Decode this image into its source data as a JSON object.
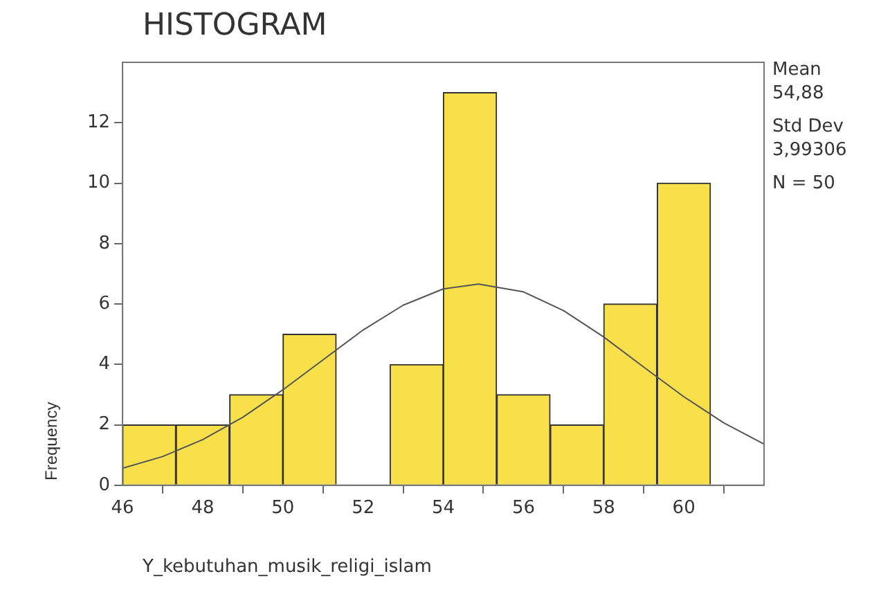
{
  "chart_data": {
    "type": "histogram",
    "title": "HISTOGRAM",
    "xlabel": "Y_kebutuhan_musik_religi_islam",
    "ylabel": "Frequency",
    "bins": [
      46,
      47.33,
      48.67,
      50,
      51.33,
      52.67,
      54,
      55.33,
      56.67,
      58,
      59.33,
      60.67
    ],
    "values": [
      2,
      2,
      3,
      5,
      0,
      4,
      13,
      3,
      2,
      6,
      10
    ],
    "color": "#f7e04a",
    "series": [
      {
        "type": "line",
        "color": "#555555",
        "x": [
          46,
          47,
          48,
          49,
          50,
          51,
          52,
          53,
          54,
          54.88,
          56,
          57,
          58,
          59,
          60,
          61,
          62
        ],
        "values": [
          0.56,
          0.95,
          1.51,
          2.25,
          3.16,
          4.15,
          5.14,
          5.96,
          6.5,
          6.66,
          6.4,
          5.78,
          4.91,
          3.91,
          2.93,
          2.06,
          1.36
        ]
      }
    ],
    "xlim": [
      46,
      62
    ],
    "xticks": [
      46,
      48,
      50,
      52,
      54,
      56,
      58,
      60
    ],
    "ylim": [
      0,
      14
    ],
    "yticks": [
      0,
      2,
      4,
      6,
      8,
      10,
      12
    ],
    "grid": false,
    "legend": false,
    "annotations": [
      "Mean",
      "54,88",
      "Std Dev",
      "3,99306",
      "N = 50"
    ]
  }
}
